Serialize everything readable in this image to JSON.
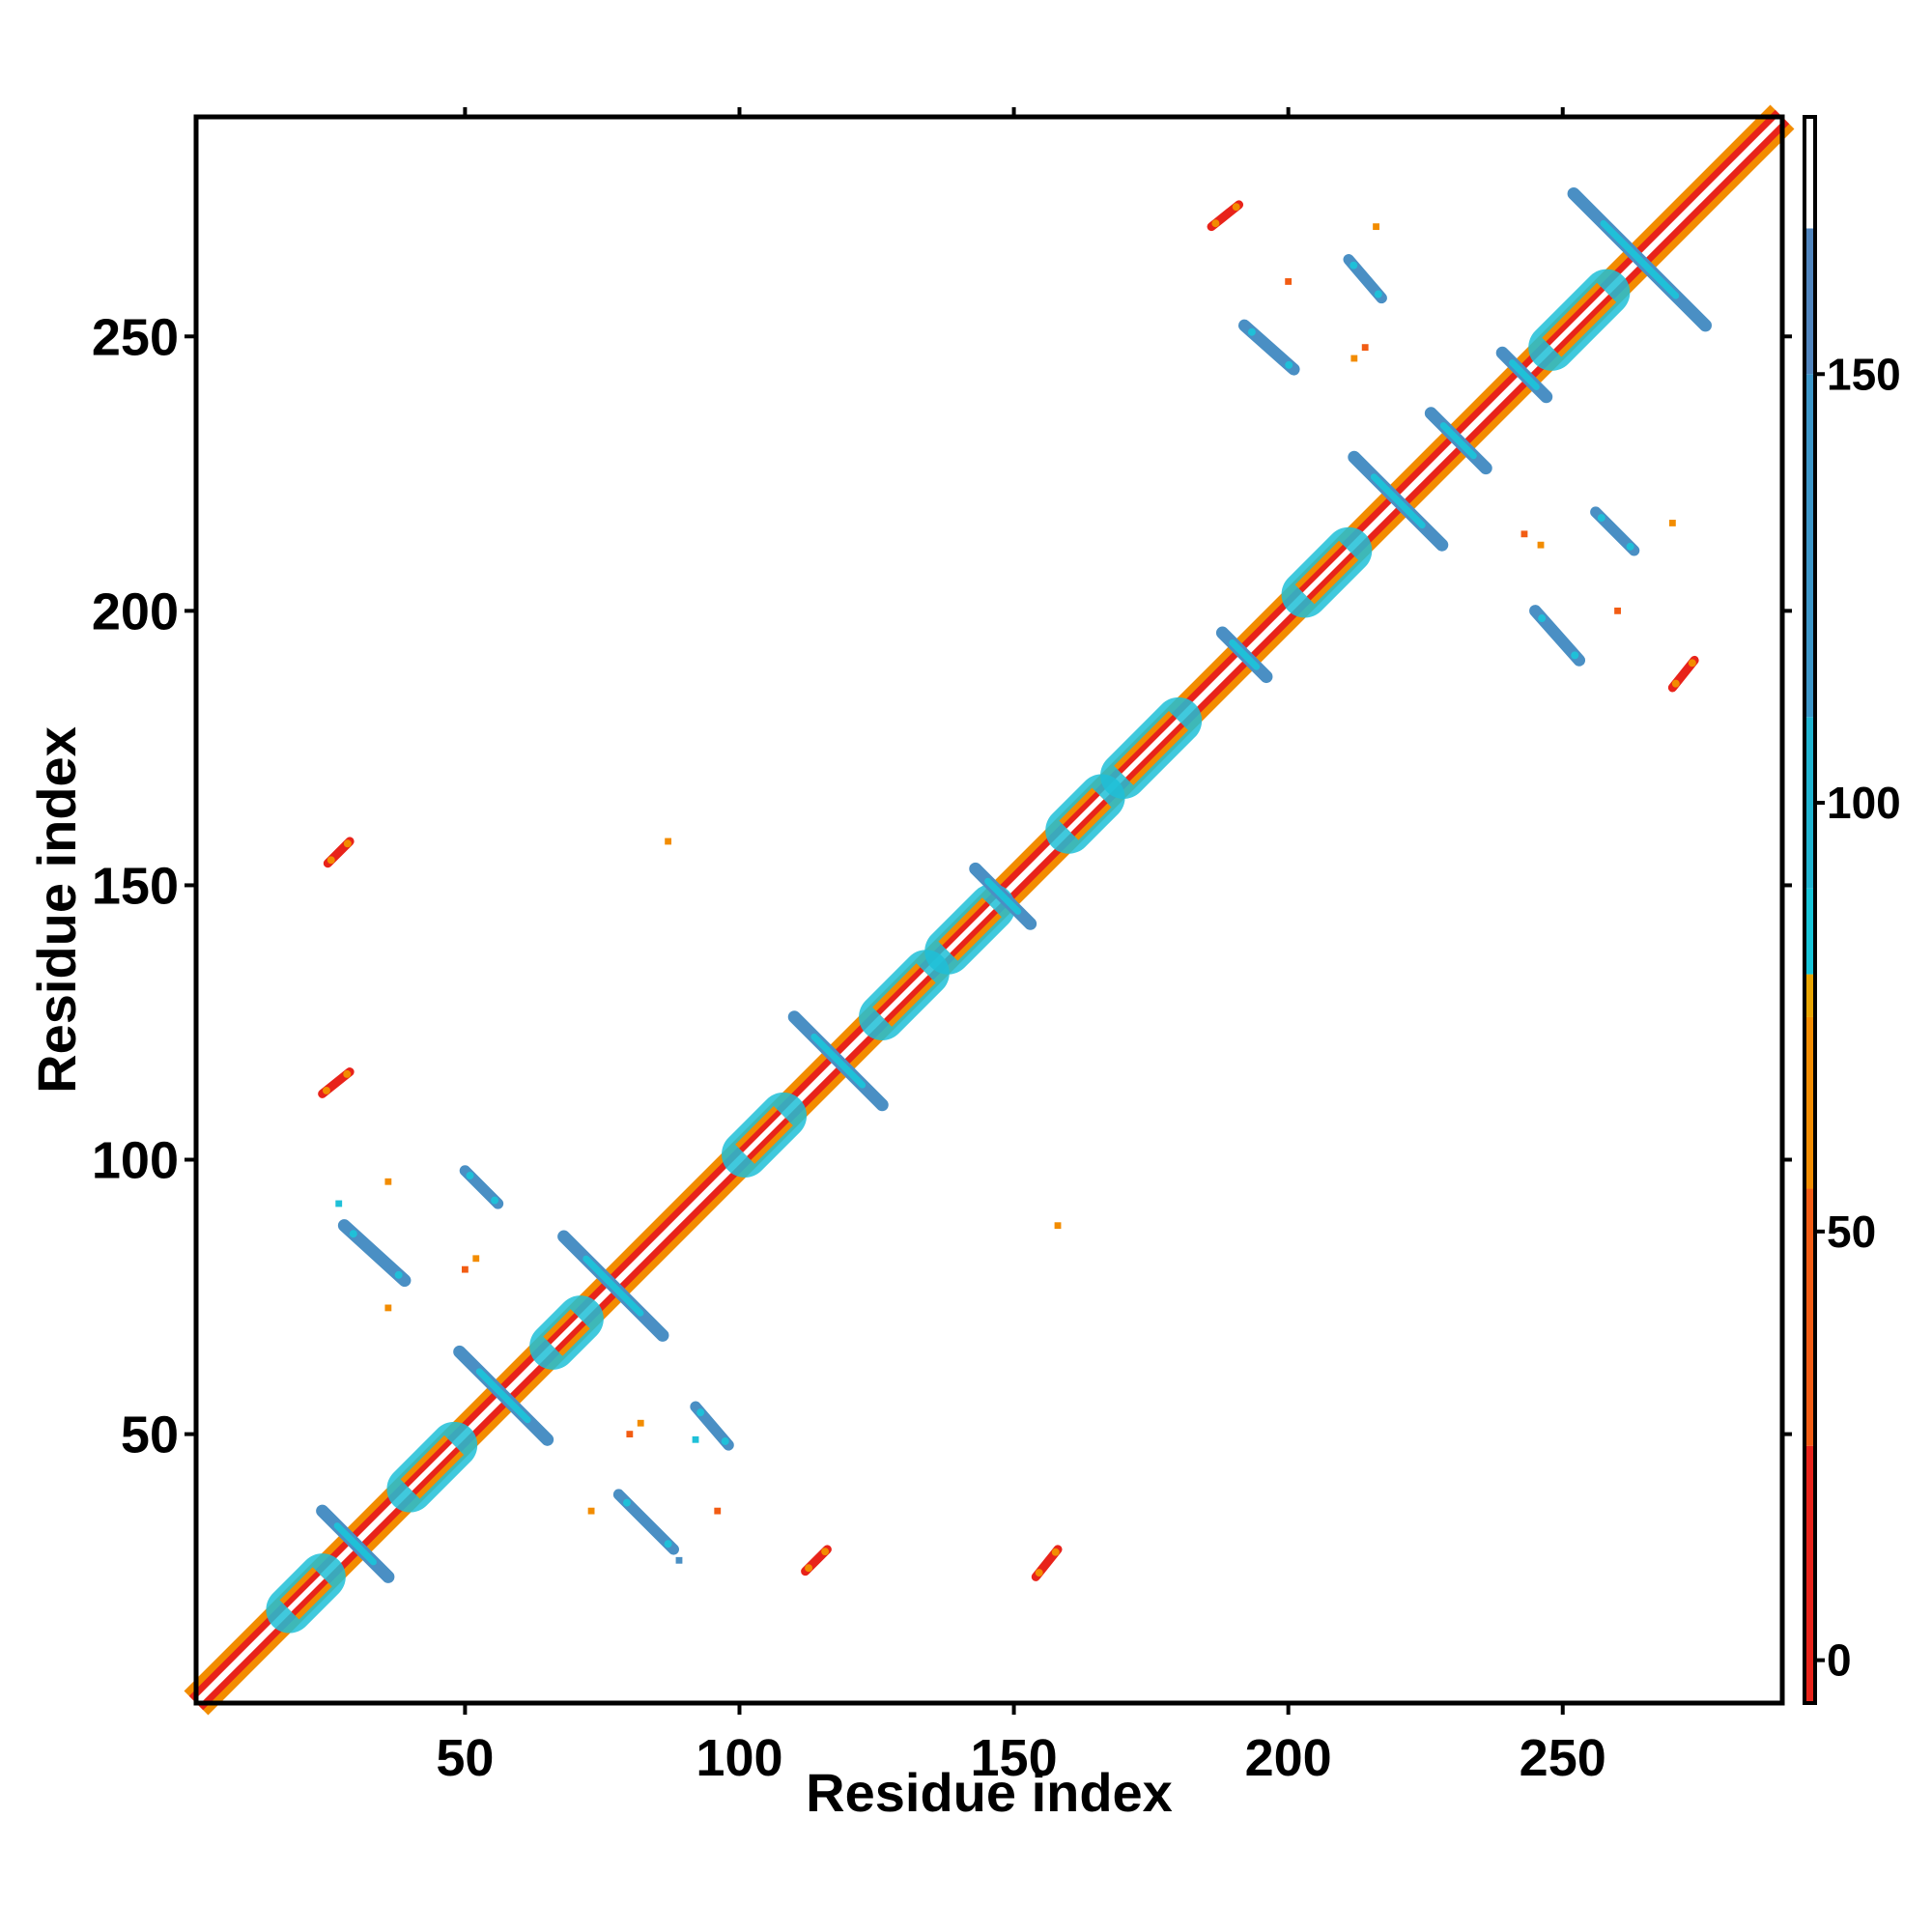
{
  "chart_data": {
    "type": "heatmap",
    "xlabel": "Residue index",
    "ylabel": "Residue index",
    "xlim": [
      1,
      290
    ],
    "ylim": [
      1,
      290
    ],
    "x_ticks": [
      50,
      100,
      150,
      200,
      250
    ],
    "y_ticks": [
      50,
      100,
      150,
      200,
      250
    ],
    "colorbar": {
      "ticks": [
        0,
        50,
        100,
        150
      ],
      "range": [
        -5,
        180
      ],
      "segments": [
        {
          "from": -5,
          "to": 25,
          "color": "#e8231a"
        },
        {
          "from": 25,
          "to": 55,
          "color": "#f25c13"
        },
        {
          "from": 55,
          "to": 75,
          "color": "#f28c00"
        },
        {
          "from": 75,
          "to": 80,
          "color": "#e8a400"
        },
        {
          "from": 80,
          "to": 90,
          "color": "#16c4d8"
        },
        {
          "from": 90,
          "to": 110,
          "color": "#1fb3d0"
        },
        {
          "from": 110,
          "to": 150,
          "color": "#3b95c8"
        },
        {
          "from": 150,
          "to": 167,
          "color": "#4f84bd"
        },
        {
          "from": 167,
          "to": 180,
          "color": "#ffffff"
        }
      ]
    },
    "diagonal": {
      "from": 1,
      "to": 290
    },
    "helix_segments": [
      {
        "from": 18,
        "to": 24
      },
      {
        "from": 40,
        "to": 48
      },
      {
        "from": 66,
        "to": 71
      },
      {
        "from": 101,
        "to": 108
      },
      {
        "from": 126,
        "to": 134
      },
      {
        "from": 138,
        "to": 146
      },
      {
        "from": 160,
        "to": 166
      },
      {
        "from": 170,
        "to": 180
      },
      {
        "from": 203,
        "to": 211
      },
      {
        "from": 248,
        "to": 258
      }
    ],
    "crossings": [
      {
        "center": 30,
        "size": 6
      },
      {
        "center": 57,
        "size": 8
      },
      {
        "center": 77,
        "size": 9
      },
      {
        "center": 118,
        "size": 8
      },
      {
        "center": 148,
        "size": 5
      },
      {
        "center": 192,
        "size": 4
      },
      {
        "center": 220,
        "size": 8
      },
      {
        "center": 231,
        "size": 5
      },
      {
        "center": 243,
        "size": 4
      },
      {
        "center": 264,
        "size": 12
      }
    ],
    "contact_patches": [
      {
        "x1": 28,
        "y1": 88,
        "x2": 39,
        "y2": 78,
        "color": "#4a8fc4",
        "accent": "#1fc0d8",
        "width": 2.3
      },
      {
        "x1": 50,
        "y1": 98,
        "x2": 56,
        "y2": 92,
        "color": "#4a8fc4",
        "accent": "#1fc0d8",
        "width": 2.0
      },
      {
        "x1": 78,
        "y1": 39,
        "x2": 88,
        "y2": 29,
        "color": "#4a8fc4",
        "accent": "#1fc0d8",
        "width": 2.0
      },
      {
        "x1": 92,
        "y1": 55,
        "x2": 98,
        "y2": 48,
        "color": "#4a8fc4",
        "accent": "#1fc0d8",
        "width": 2.0
      },
      {
        "x1": 192,
        "y1": 252,
        "x2": 201,
        "y2": 244,
        "color": "#4a8fc4",
        "accent": "#1fc0d8",
        "width": 2.2
      },
      {
        "x1": 211,
        "y1": 264,
        "x2": 217,
        "y2": 257,
        "color": "#4a8fc4",
        "accent": "#1fc0d8",
        "width": 2.0
      },
      {
        "x1": 245,
        "y1": 200,
        "x2": 253,
        "y2": 191,
        "color": "#4a8fc4",
        "accent": "#1fc0d8",
        "width": 2.2
      },
      {
        "x1": 256,
        "y1": 218,
        "x2": 263,
        "y2": 211,
        "color": "#4a8fc4",
        "accent": "#1fc0d8",
        "width": 2.0
      },
      {
        "x1": 25,
        "y1": 154,
        "x2": 29,
        "y2": 158,
        "color": "#e8231a",
        "accent": "#f28c00",
        "width": 1.6
      },
      {
        "x1": 24,
        "y1": 112,
        "x2": 29,
        "y2": 116,
        "color": "#e8231a",
        "accent": "#f28c00",
        "width": 1.6
      },
      {
        "x1": 112,
        "y1": 25,
        "x2": 116,
        "y2": 29,
        "color": "#e8231a",
        "accent": "#f28c00",
        "width": 1.6
      },
      {
        "x1": 154,
        "y1": 24,
        "x2": 158,
        "y2": 29,
        "color": "#e8231a",
        "accent": "#f28c00",
        "width": 1.6
      },
      {
        "x1": 186,
        "y1": 270,
        "x2": 191,
        "y2": 274,
        "color": "#e8231a",
        "accent": "#f28c00",
        "width": 1.6
      },
      {
        "x1": 270,
        "y1": 186,
        "x2": 274,
        "y2": 191,
        "color": "#e8231a",
        "accent": "#f28c00",
        "width": 1.6
      }
    ],
    "specks": [
      {
        "x": 27,
        "y": 92,
        "color": "#1fc0d8"
      },
      {
        "x": 36,
        "y": 96,
        "color": "#f28c00"
      },
      {
        "x": 36,
        "y": 73,
        "color": "#f28c00"
      },
      {
        "x": 50,
        "y": 80,
        "color": "#f25c13"
      },
      {
        "x": 52,
        "y": 82,
        "color": "#f28c00"
      },
      {
        "x": 73,
        "y": 36,
        "color": "#f28c00"
      },
      {
        "x": 80,
        "y": 50,
        "color": "#f25c13"
      },
      {
        "x": 82,
        "y": 52,
        "color": "#f28c00"
      },
      {
        "x": 87,
        "y": 158,
        "color": "#f28c00"
      },
      {
        "x": 89,
        "y": 27,
        "color": "#4a8fc4"
      },
      {
        "x": 92,
        "y": 49,
        "color": "#1fc0d8"
      },
      {
        "x": 96,
        "y": 36,
        "color": "#f25c13"
      },
      {
        "x": 158,
        "y": 88,
        "color": "#f28c00"
      },
      {
        "x": 212,
        "y": 246,
        "color": "#f28c00"
      },
      {
        "x": 214,
        "y": 248,
        "color": "#f25c13"
      },
      {
        "x": 200,
        "y": 260,
        "color": "#f25c13"
      },
      {
        "x": 216,
        "y": 270,
        "color": "#f28c00"
      },
      {
        "x": 243,
        "y": 214,
        "color": "#f25c13"
      },
      {
        "x": 246,
        "y": 212,
        "color": "#f28c00"
      },
      {
        "x": 260,
        "y": 200,
        "color": "#f25c13"
      },
      {
        "x": 270,
        "y": 216,
        "color": "#f28c00"
      }
    ]
  }
}
